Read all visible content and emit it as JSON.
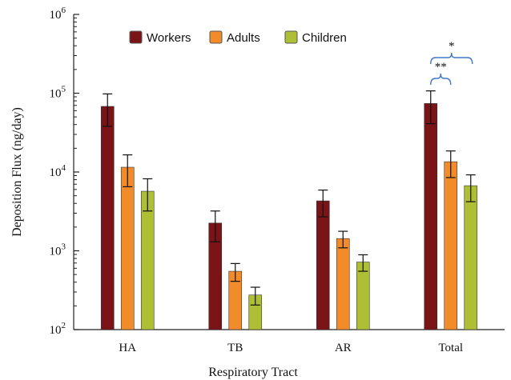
{
  "chart_data": {
    "type": "bar",
    "xlabel": "Respiratory Tract",
    "ylabel": "Deposition Flux (ng/day)",
    "yscale": "log",
    "ylim": [
      100,
      1000000
    ],
    "yticks": [
      {
        "value": 100,
        "base": "10",
        "exp": "2"
      },
      {
        "value": 1000,
        "base": "10",
        "exp": "3"
      },
      {
        "value": 10000,
        "base": "10",
        "exp": "4"
      },
      {
        "value": 100000,
        "base": "10",
        "exp": "5"
      },
      {
        "value": 1000000,
        "base": "10",
        "exp": "6"
      }
    ],
    "categories": [
      "HA",
      "TB",
      "AR",
      "Total"
    ],
    "series": [
      {
        "name": "Workers",
        "color": "#7a1417",
        "values": [
          68000,
          2250,
          4300,
          74000
        ],
        "errors": [
          30000,
          950,
          1600,
          33000
        ]
      },
      {
        "name": "Adults",
        "color": "#f28c2b",
        "values": [
          11500,
          550,
          1430,
          13500
        ],
        "errors": [
          5000,
          140,
          340,
          5000
        ]
      },
      {
        "name": "Children",
        "color": "#aebe35",
        "values": [
          5700,
          275,
          720,
          6700
        ],
        "errors": [
          2500,
          70,
          170,
          2500
        ]
      }
    ],
    "legend_position": "top",
    "annotations": [
      {
        "text": "**",
        "bracket": "Workers-Adults",
        "category": "Total",
        "color": "#3f78c8"
      },
      {
        "text": "*",
        "bracket": "Workers-Children",
        "category": "Total",
        "color": "#3f78c8"
      }
    ]
  }
}
